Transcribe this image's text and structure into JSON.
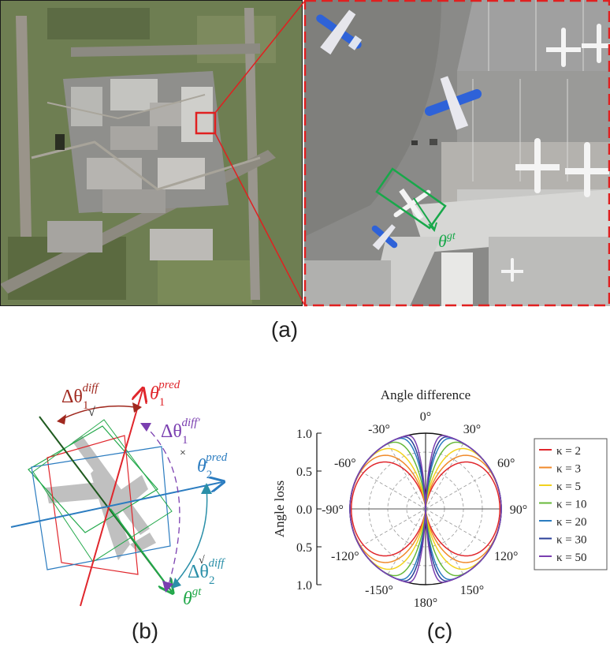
{
  "figure": {
    "panel_a": {
      "label": "(a)",
      "annotation_prefix": "θ",
      "annotation_sup": "gt",
      "colors": {
        "highlight": "#e02020",
        "gt_box": "#18a84a",
        "terminal": "#cfcfcf",
        "tarmac": "#8a8a8a",
        "apron": "#9c9c9c",
        "grass": "#6b7d4a",
        "plane_blue": "#2e62d8"
      }
    },
    "panel_b": {
      "label": "(b)",
      "theta1_pred": {
        "base": "θ",
        "sub": "1",
        "sup": "pred"
      },
      "theta2_pred": {
        "base": "θ",
        "sub": "2",
        "sup": "pred"
      },
      "theta_gt": {
        "base": "θ",
        "sup": "gt"
      },
      "delta1_diff": {
        "base": "Δθ",
        "sub": "1",
        "sup": "diff"
      },
      "delta1_diff_prime": {
        "base": "Δθ",
        "sub": "1",
        "sup": "diff'"
      },
      "delta2_diff": {
        "base": "Δθ",
        "sub": "2",
        "sup": "diff"
      },
      "check_mark": "√",
      "cross_mark": "×",
      "colors": {
        "theta1_pred": "#e0262c",
        "theta2_pred": "#2b7cc0",
        "theta_gt": "#22a84a",
        "delta1_diff": "#a0291f",
        "delta1_diff_prime": "#7a3fb0",
        "delta2_diff": "#2a8fa8",
        "plane": "#c0c0c0"
      }
    },
    "panel_c": {
      "label": "(c)",
      "chart_data": {
        "type": "polar-line",
        "title": "Angle difference",
        "radial_label": "Angle loss",
        "radial_ticks": [
          "1.0",
          "0.5",
          "0.0",
          "0.5",
          "1.0"
        ],
        "angle_ticks": [
          "0°",
          "30°",
          "60°",
          "90°",
          "120°",
          "150°",
          "180°",
          "-150°",
          "-120°",
          "-90°",
          "-60°",
          "-30°"
        ],
        "series": [
          {
            "name": "κ = 2",
            "kappa": 2,
            "color": "#e0262c"
          },
          {
            "name": "κ = 3",
            "kappa": 3,
            "color": "#f08a2a"
          },
          {
            "name": "κ = 5",
            "kappa": 5,
            "color": "#f2d21e"
          },
          {
            "name": "κ = 10",
            "kappa": 10,
            "color": "#67b83a"
          },
          {
            "name": "κ = 20",
            "kappa": 20,
            "color": "#2b7cc0"
          },
          {
            "name": "κ = 30",
            "kappa": 30,
            "color": "#2a3f98"
          },
          {
            "name": "κ = 50",
            "kappa": 50,
            "color": "#7a3fb0"
          }
        ],
        "legend_position": "right",
        "grid": true
      }
    }
  }
}
